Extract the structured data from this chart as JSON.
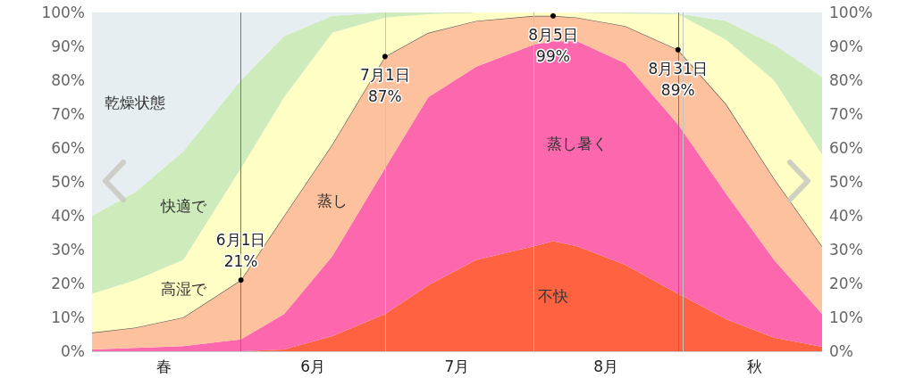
{
  "chart_data": {
    "type": "area",
    "stacked": true,
    "x": [
      "--05-01",
      "--05-10",
      "--05-20",
      "--06-01",
      "--06-10",
      "--06-20",
      "--07-01",
      "--07-10",
      "--07-20",
      "--08-01",
      "--08-05",
      "--08-10",
      "--08-20",
      "--08-31",
      "--09-10",
      "--09-20",
      "--09-30"
    ],
    "series": [
      {
        "name": "不快",
        "color": "#fe6240",
        "values": [
          0,
          0,
          0,
          0,
          0.5,
          4.5,
          11,
          19.5,
          27,
          31,
          32.5,
          31,
          25.5,
          17,
          9.5,
          4,
          1.3
        ]
      },
      {
        "name": "蒸し暑く",
        "color": "#fd67ae",
        "values": [
          0.5,
          1,
          1.5,
          3.5,
          10.5,
          23.5,
          43,
          55.5,
          57,
          59.5,
          59,
          60.5,
          59.5,
          50,
          37,
          23,
          9.7
        ]
      },
      {
        "name": "蒸し",
        "color": "#fdc19d",
        "line_style": "solid",
        "values": [
          5,
          6,
          8.5,
          17.5,
          29,
          33,
          33,
          19,
          13.5,
          8.5,
          7.5,
          7,
          11,
          22,
          26.5,
          24,
          20
        ]
      },
      {
        "name": "高湿で",
        "color": "#fffec4",
        "values": [
          11.5,
          14,
          17,
          33,
          35,
          33,
          11.5,
          5.5,
          2.5,
          1,
          1,
          1.5,
          3.7,
          10.5,
          19,
          29,
          27
        ]
      },
      {
        "name": "快適で",
        "color": "#cdebbb",
        "values": [
          23,
          26,
          32,
          26,
          18,
          5,
          1.5,
          0.5,
          0,
          0,
          0,
          0,
          0.3,
          0.2,
          5.5,
          10.5,
          23
        ]
      },
      {
        "name": "乾燥状態",
        "color": "#e6eef2",
        "values": [
          60,
          53,
          41,
          20,
          7,
          1,
          0,
          0,
          0,
          0,
          0,
          0,
          0,
          0.3,
          2.5,
          9.5,
          19
        ]
      }
    ],
    "xlim": [
      "--05-01",
      "--09-30"
    ],
    "xticks": [
      {
        "value": "--05-16",
        "label": "春"
      },
      {
        "value": "--06-01",
        "label": null
      },
      {
        "value": "--06-16",
        "label": "6月"
      },
      {
        "value": "--07-01",
        "label": null
      },
      {
        "value": "--07-16",
        "label": "7月"
      },
      {
        "value": "--08-01",
        "label": null
      },
      {
        "value": "--08-16",
        "label": "8月"
      },
      {
        "value": "--09-01",
        "label": null
      },
      {
        "value": "--09-16",
        "label": "秋"
      }
    ],
    "ylim": [
      0,
      100
    ],
    "yticks": [
      {
        "value": 0,
        "label": "0%"
      },
      {
        "value": 10,
        "label": "10%"
      },
      {
        "value": 20,
        "label": "20%"
      },
      {
        "value": 30,
        "label": "30%"
      },
      {
        "value": 40,
        "label": "40%"
      },
      {
        "value": 50,
        "label": "50%"
      },
      {
        "value": 60,
        "label": "60%"
      },
      {
        "value": 70,
        "label": "70%"
      },
      {
        "value": 80,
        "label": "80%"
      },
      {
        "value": 90,
        "label": "90%"
      },
      {
        "value": 100,
        "label": "100%"
      }
    ],
    "y2lim": [
      0,
      100
    ],
    "y2ticks": [
      {
        "value": 0,
        "label": "0%"
      },
      {
        "value": 10,
        "label": "10%"
      },
      {
        "value": 20,
        "label": "20%"
      },
      {
        "value": 30,
        "label": "30%"
      },
      {
        "value": 40,
        "label": "40%"
      },
      {
        "value": 50,
        "label": "50%"
      },
      {
        "value": 60,
        "label": "60%"
      },
      {
        "value": 70,
        "label": "70%"
      },
      {
        "value": 80,
        "label": "80%"
      },
      {
        "value": 90,
        "label": "90%"
      },
      {
        "value": 100,
        "label": "100%"
      }
    ],
    "grid": true,
    "ref_lines": [
      {
        "axis": "x",
        "value": "--06-01",
        "color": "#777777"
      },
      {
        "axis": "x",
        "value": "--08-31",
        "color": "#777777"
      }
    ],
    "annotations": [
      {
        "text": "6月1日\n21%",
        "x": "--06-01",
        "y": 21
      },
      {
        "text": "7月1日\n87%",
        "x": "--07-01",
        "y": 87
      },
      {
        "text": "8月5日\n99%",
        "x": "--08-05",
        "y": 99
      },
      {
        "text": "8月31日\n89%",
        "x": "--08-31",
        "y": 89
      }
    ]
  }
}
